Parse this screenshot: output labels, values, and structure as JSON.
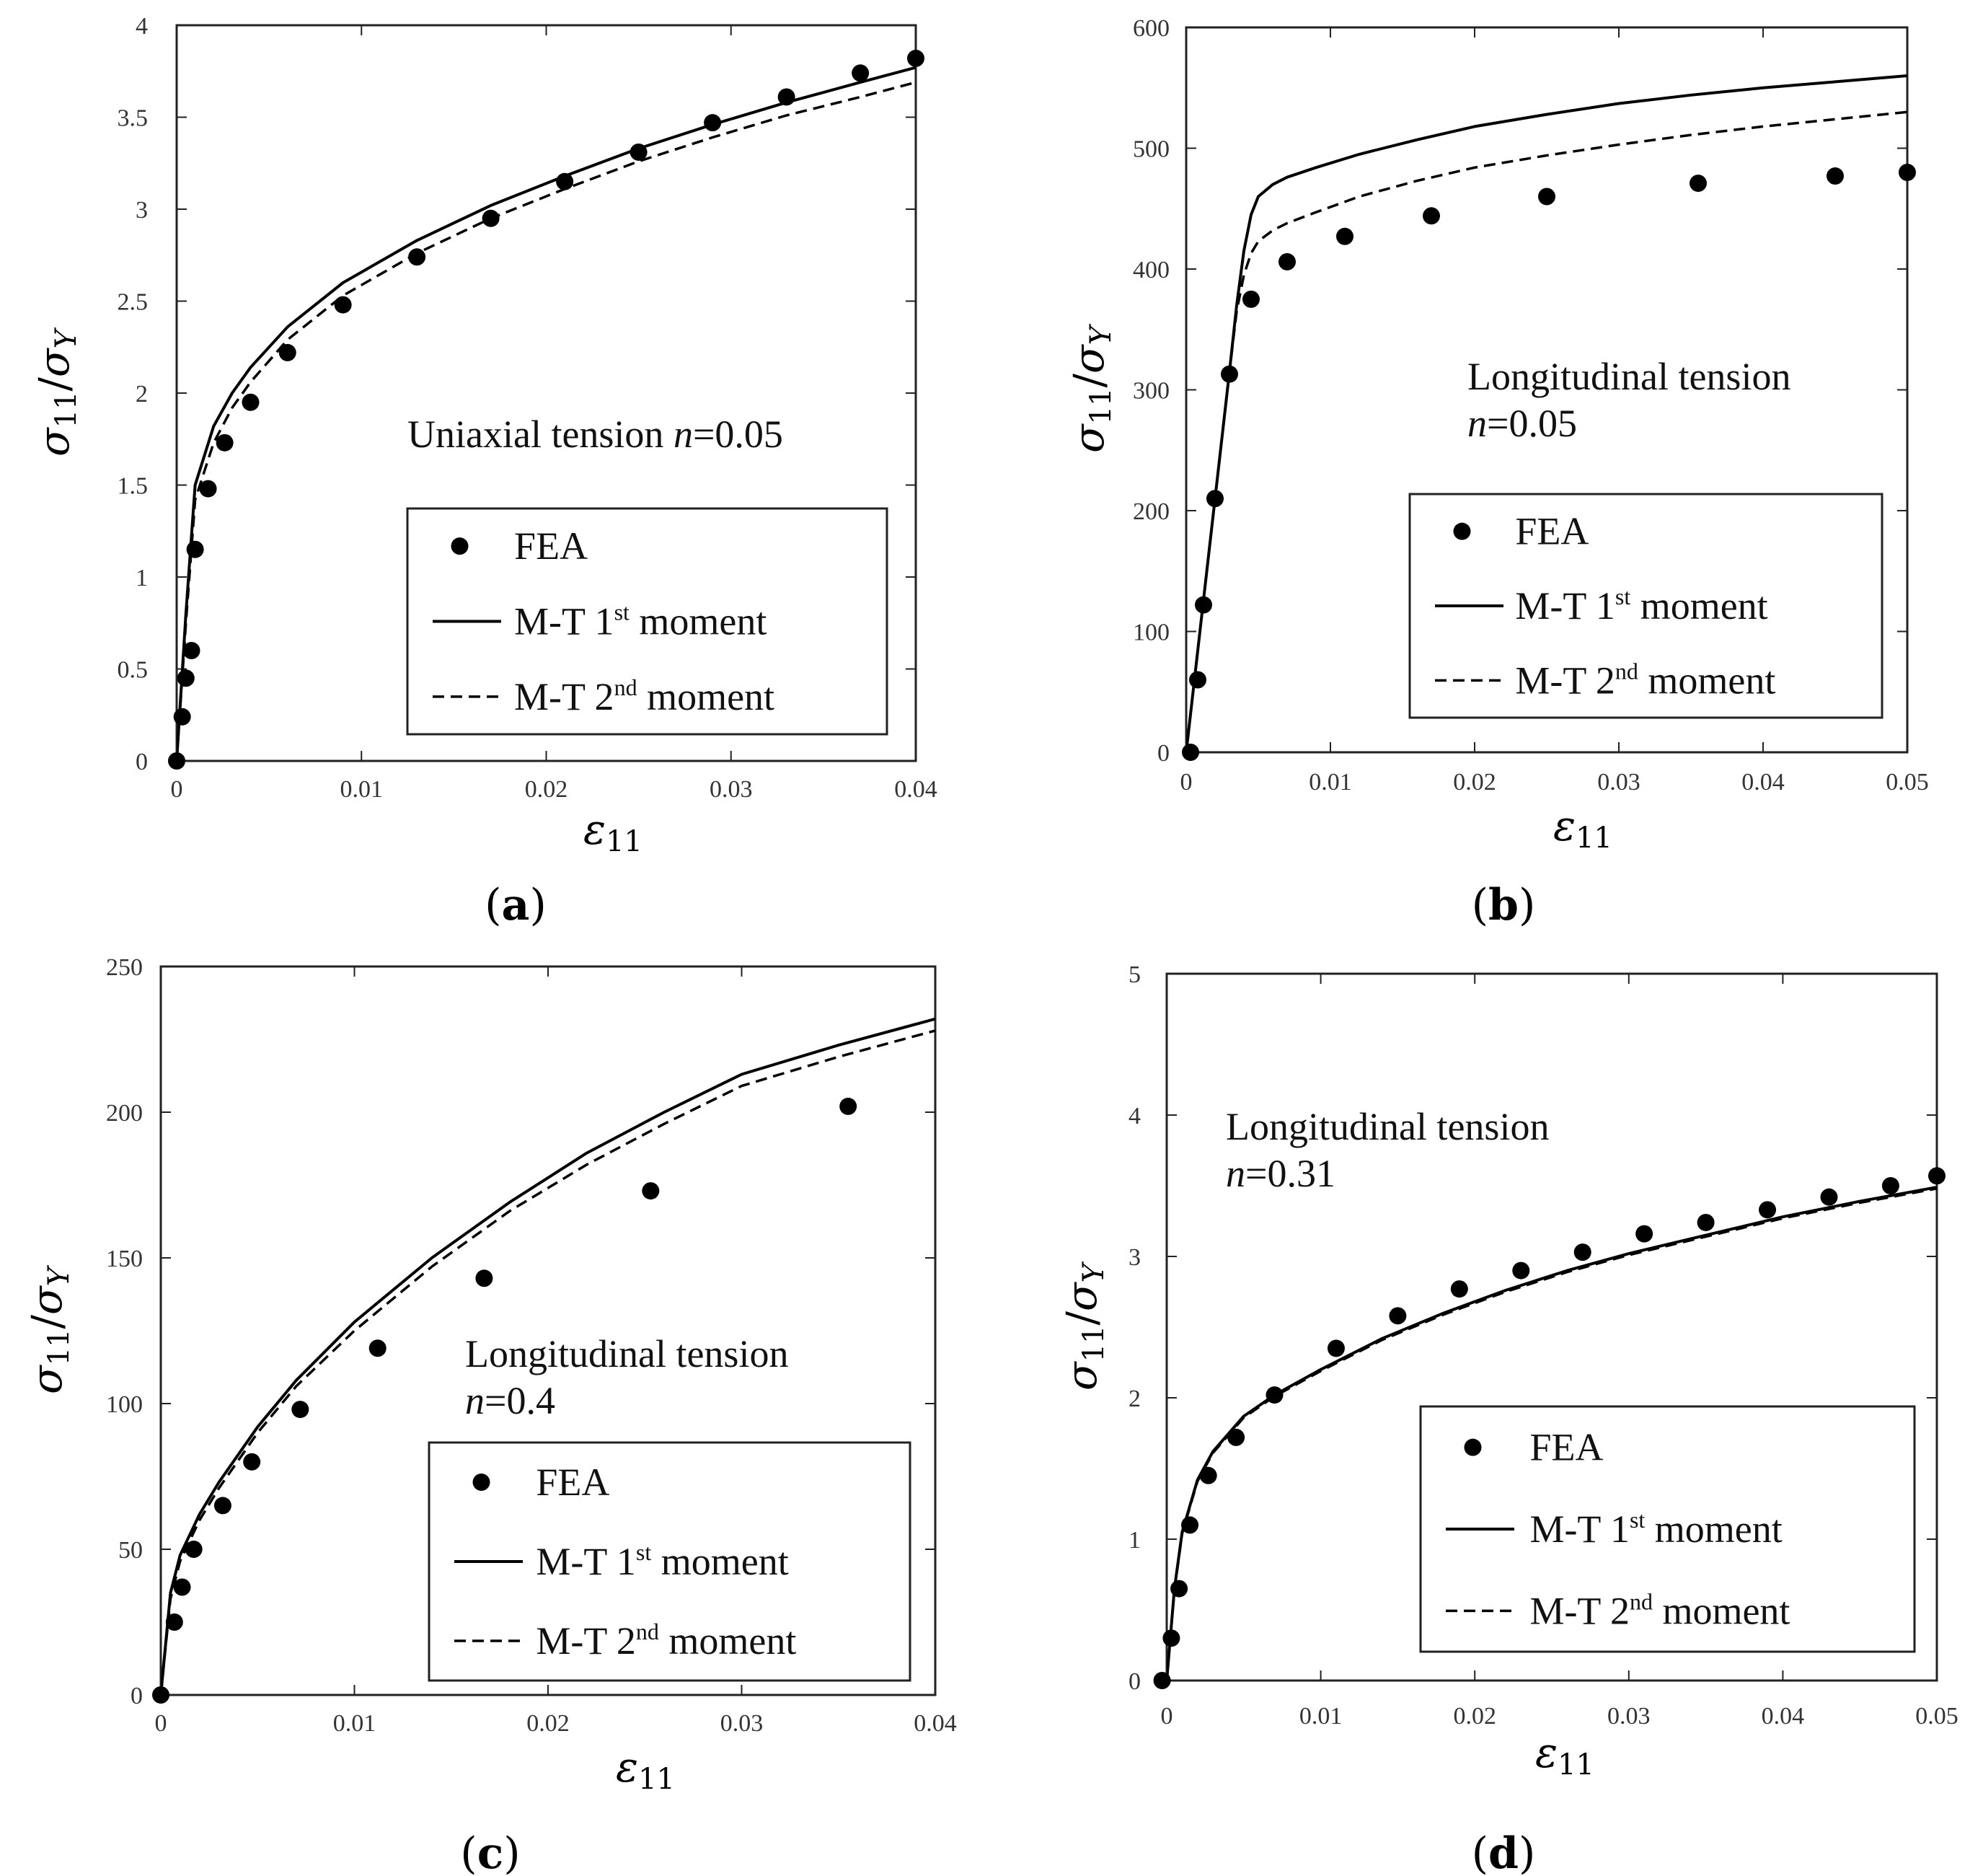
{
  "chart_data": [
    {
      "type": "line",
      "panel_label": "a",
      "xlabel": "ε11",
      "ylabel": "σ11/σY",
      "xlim": [
        0,
        0.04
      ],
      "ylim": [
        0,
        4
      ],
      "xticks": [
        "0",
        "0.01",
        "0.02",
        "0.03",
        "0.04"
      ],
      "yticks": [
        "0",
        "0.5",
        "1",
        "1.5",
        "2",
        "2.5",
        "3",
        "3.5",
        "4"
      ],
      "annotation": [
        "Uniaxial tension n=0.05"
      ],
      "legend": [
        "FEA",
        "M-T 1st moment",
        "M-T 2nd moment"
      ],
      "series": [
        {
          "name": "FEA",
          "style": "markers",
          "x": [
            0,
            0.0003,
            0.0005,
            0.0008,
            0.001,
            0.0017,
            0.0026,
            0.004,
            0.006,
            0.009,
            0.013,
            0.017,
            0.021,
            0.025,
            0.029,
            0.033,
            0.037,
            0.04
          ],
          "y": [
            0,
            0.24,
            0.45,
            0.6,
            1.15,
            1.48,
            1.73,
            1.95,
            2.22,
            2.48,
            2.74,
            2.95,
            3.15,
            3.31,
            3.47,
            3.61,
            3.74,
            3.82
          ]
        },
        {
          "name": "M-T 1st moment",
          "style": "solid",
          "x": [
            0,
            0.0005,
            0.001,
            0.002,
            0.003,
            0.004,
            0.006,
            0.009,
            0.013,
            0.017,
            0.021,
            0.025,
            0.029,
            0.033,
            0.037,
            0.04
          ],
          "y": [
            0,
            0.8,
            1.5,
            1.82,
            2.0,
            2.14,
            2.36,
            2.6,
            2.83,
            3.02,
            3.18,
            3.33,
            3.46,
            3.58,
            3.69,
            3.77
          ]
        },
        {
          "name": "M-T 2nd moment",
          "style": "dashed",
          "x": [
            0,
            0.0005,
            0.001,
            0.002,
            0.003,
            0.004,
            0.006,
            0.009,
            0.013,
            0.017,
            0.021,
            0.025,
            0.029,
            0.033,
            0.037,
            0.04
          ],
          "y": [
            0,
            0.75,
            1.42,
            1.73,
            1.92,
            2.06,
            2.29,
            2.53,
            2.76,
            2.95,
            3.11,
            3.26,
            3.39,
            3.51,
            3.61,
            3.69
          ]
        }
      ]
    },
    {
      "type": "line",
      "panel_label": "b",
      "xlabel": "ε11",
      "ylabel": "σ11/σY",
      "xlim": [
        0,
        0.05
      ],
      "ylim": [
        0,
        600
      ],
      "xticks": [
        "0",
        "0.01",
        "0.02",
        "0.03",
        "0.04",
        "0.05"
      ],
      "yticks": [
        "0",
        "100",
        "200",
        "300",
        "400",
        "500",
        "600"
      ],
      "annotation": [
        "Longitudinal tension",
        "n=0.05"
      ],
      "legend": [
        "FEA",
        "M-T 1st moment",
        "M-T 2nd moment"
      ],
      "series": [
        {
          "name": "FEA",
          "style": "markers",
          "x": [
            0.0003,
            0.0008,
            0.0012,
            0.002,
            0.003,
            0.0045,
            0.007,
            0.011,
            0.017,
            0.025,
            0.0355,
            0.045,
            0.05
          ],
          "y": [
            0,
            60,
            122,
            210,
            313,
            375,
            406,
            427,
            444,
            460,
            471,
            477,
            480
          ]
        },
        {
          "name": "M-T 1st moment",
          "style": "solid",
          "x": [
            0,
            0.001,
            0.002,
            0.003,
            0.0035,
            0.004,
            0.0045,
            0.005,
            0.006,
            0.007,
            0.009,
            0.012,
            0.016,
            0.02,
            0.025,
            0.03,
            0.035,
            0.04,
            0.045,
            0.05
          ],
          "y": [
            0,
            105,
            210,
            315,
            370,
            415,
            445,
            460,
            470,
            476,
            484,
            495,
            507,
            518,
            528,
            537,
            544,
            550,
            555,
            560
          ]
        },
        {
          "name": "M-T 2nd moment",
          "style": "dashed",
          "x": [
            0,
            0.001,
            0.002,
            0.003,
            0.0035,
            0.004,
            0.0045,
            0.005,
            0.006,
            0.007,
            0.009,
            0.012,
            0.016,
            0.02,
            0.025,
            0.03,
            0.035,
            0.04,
            0.045,
            0.05
          ],
          "y": [
            0,
            105,
            210,
            315,
            365,
            395,
            413,
            423,
            432,
            438,
            447,
            460,
            473,
            484,
            494,
            503,
            511,
            518,
            524,
            530
          ]
        }
      ]
    },
    {
      "type": "line",
      "panel_label": "c",
      "xlabel": "ε11",
      "ylabel": "σ11/σY",
      "xlim": [
        0,
        0.04
      ],
      "ylim": [
        0,
        250
      ],
      "xticks": [
        "0",
        "0.01",
        "0.02",
        "0.03",
        "0.04"
      ],
      "yticks": [
        "0",
        "50",
        "100",
        "150",
        "200",
        "250"
      ],
      "annotation": [
        "Longitudinal tension",
        "n=0.4"
      ],
      "legend": [
        "FEA",
        "M-T 1st moment",
        "M-T 2nd moment"
      ],
      "series": [
        {
          "name": "FEA",
          "style": "markers",
          "x": [
            0,
            0.0007,
            0.0011,
            0.0017,
            0.0032,
            0.0047,
            0.0072,
            0.0112,
            0.0167,
            0.0253,
            0.0355
          ],
          "y": [
            0,
            25,
            37,
            50,
            65,
            80,
            98,
            119,
            143,
            173,
            202
          ]
        },
        {
          "name": "M-T 1st moment",
          "style": "solid",
          "x": [
            0,
            0.0005,
            0.001,
            0.002,
            0.003,
            0.005,
            0.007,
            0.01,
            0.014,
            0.018,
            0.022,
            0.026,
            0.03,
            0.035,
            0.04
          ],
          "y": [
            0,
            35,
            48,
            62,
            73,
            92,
            108,
            128,
            150,
            169,
            186,
            200,
            213,
            223,
            232
          ]
        },
        {
          "name": "M-T 2nd moment",
          "style": "dashed",
          "x": [
            0,
            0.0005,
            0.001,
            0.002,
            0.003,
            0.005,
            0.007,
            0.01,
            0.014,
            0.018,
            0.022,
            0.026,
            0.03,
            0.035,
            0.04
          ],
          "y": [
            0,
            33,
            46,
            60,
            71,
            90,
            106,
            125,
            147,
            166,
            182,
            196,
            209,
            219,
            228
          ]
        }
      ]
    },
    {
      "type": "line",
      "panel_label": "d",
      "xlabel": "ε11",
      "ylabel": "σ11/σY",
      "xlim": [
        0,
        0.05
      ],
      "ylim": [
        0,
        5
      ],
      "xticks": [
        "0",
        "0.01",
        "0.02",
        "0.03",
        "0.04",
        "0.05"
      ],
      "yticks": [
        "0",
        "1",
        "2",
        "3",
        "4",
        "5"
      ],
      "annotation": [
        "Longitudinal tension",
        "n=0.31"
      ],
      "legend": [
        "FEA",
        "M-T 1st moment",
        "M-T 2nd moment"
      ],
      "series": [
        {
          "name": "FEA",
          "style": "markers",
          "x": [
            -0.0003,
            0.0003,
            0.0008,
            0.0015,
            0.0027,
            0.0045,
            0.007,
            0.011,
            0.015,
            0.019,
            0.023,
            0.027,
            0.031,
            0.035,
            0.039,
            0.043,
            0.047,
            0.05
          ],
          "y": [
            0,
            0.3,
            0.65,
            1.1,
            1.45,
            1.72,
            2.02,
            2.35,
            2.58,
            2.77,
            2.9,
            3.03,
            3.16,
            3.24,
            3.33,
            3.42,
            3.5,
            3.57
          ]
        },
        {
          "name": "M-T 1st moment",
          "style": "solid",
          "x": [
            0,
            0.0005,
            0.001,
            0.002,
            0.003,
            0.005,
            0.007,
            0.01,
            0.014,
            0.018,
            0.022,
            0.026,
            0.03,
            0.035,
            0.04,
            0.045,
            0.05
          ],
          "y": [
            0,
            0.65,
            1.05,
            1.42,
            1.62,
            1.87,
            2.02,
            2.2,
            2.42,
            2.6,
            2.76,
            2.9,
            3.02,
            3.15,
            3.28,
            3.39,
            3.49
          ]
        },
        {
          "name": "M-T 2nd moment",
          "style": "dashed",
          "x": [
            0,
            0.0005,
            0.001,
            0.002,
            0.003,
            0.005,
            0.007,
            0.01,
            0.014,
            0.018,
            0.022,
            0.026,
            0.03,
            0.035,
            0.04,
            0.045,
            0.05
          ],
          "y": [
            0,
            0.64,
            1.04,
            1.41,
            1.61,
            1.86,
            2.01,
            2.19,
            2.41,
            2.59,
            2.75,
            2.89,
            3.01,
            3.14,
            3.27,
            3.38,
            3.48
          ]
        }
      ]
    }
  ]
}
